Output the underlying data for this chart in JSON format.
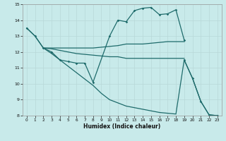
{
  "xlabel": "Humidex (Indice chaleur)",
  "bg_color": "#c8eaea",
  "line_color": "#1e6b6b",
  "grid_major_color": "#b8d8d8",
  "grid_minor_color": "#d0e8e8",
  "xlim": [
    -0.5,
    23.5
  ],
  "ylim": [
    8,
    15
  ],
  "xticks": [
    0,
    1,
    2,
    3,
    4,
    5,
    6,
    7,
    8,
    9,
    10,
    11,
    12,
    13,
    14,
    15,
    16,
    17,
    18,
    19,
    20,
    21,
    22,
    23
  ],
  "yticks": [
    8,
    9,
    10,
    11,
    12,
    13,
    14,
    15
  ],
  "line1_x": [
    0,
    1,
    2,
    3,
    4,
    5,
    6,
    7,
    8,
    10,
    11,
    12,
    13,
    14,
    15,
    16,
    17,
    18,
    19
  ],
  "line1_y": [
    13.5,
    13.0,
    12.25,
    12.0,
    11.5,
    11.4,
    11.3,
    11.3,
    10.1,
    13.0,
    14.0,
    13.9,
    14.6,
    14.75,
    14.8,
    14.35,
    14.4,
    14.65,
    12.75
  ],
  "line2_x": [
    0,
    1,
    2,
    3,
    4,
    5,
    6,
    7,
    8,
    9,
    10,
    11,
    12,
    13,
    14,
    15,
    16,
    17,
    18,
    19,
    20,
    21,
    22,
    23
  ],
  "line2_y": [
    13.5,
    13.0,
    12.25,
    11.9,
    11.5,
    11.1,
    10.7,
    10.3,
    9.9,
    9.4,
    9.0,
    8.8,
    8.6,
    8.5,
    8.4,
    8.3,
    8.2,
    8.15,
    8.1,
    11.5,
    10.35,
    8.9,
    8.05,
    8.0
  ],
  "line3_x": [
    2,
    3,
    4,
    5,
    6,
    7,
    8,
    9,
    10,
    11,
    12,
    13,
    14,
    15,
    16,
    17,
    18,
    19
  ],
  "line3_y": [
    12.25,
    12.25,
    12.25,
    12.25,
    12.25,
    12.25,
    12.25,
    12.3,
    12.35,
    12.4,
    12.5,
    12.5,
    12.5,
    12.55,
    12.6,
    12.65,
    12.65,
    12.65
  ],
  "line4_x": [
    2,
    3,
    4,
    5,
    6,
    7,
    8,
    9,
    10,
    11,
    12,
    13,
    14,
    15,
    16,
    17,
    18,
    19
  ],
  "line4_y": [
    12.25,
    12.2,
    12.1,
    12.0,
    11.9,
    11.85,
    11.8,
    11.75,
    11.7,
    11.7,
    11.6,
    11.6,
    11.6,
    11.6,
    11.6,
    11.6,
    11.6,
    11.6
  ]
}
